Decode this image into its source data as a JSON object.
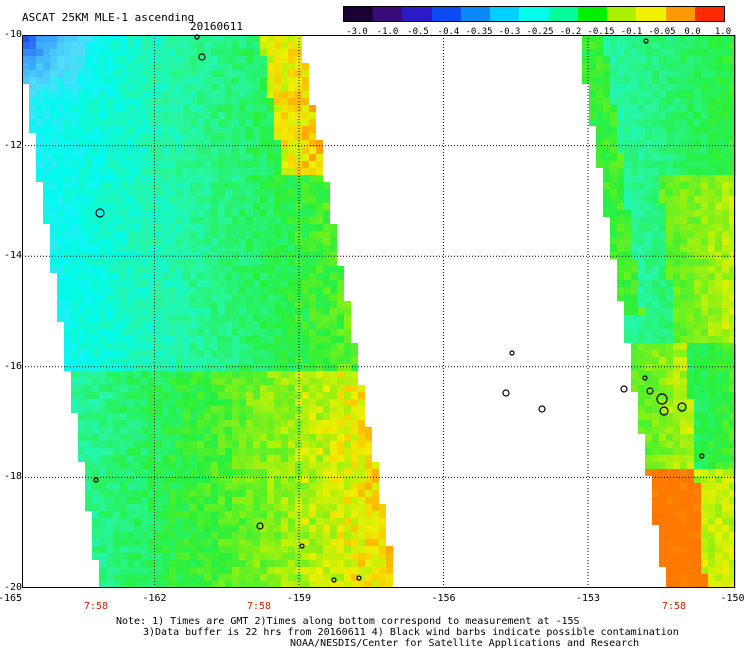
{
  "header": {
    "title": "ASCAT 25KM MLE-1 ascending",
    "date": "20160611"
  },
  "colorbar": {
    "ticks": [
      "-3.0",
      "-1.0",
      "-0.5",
      "-0.4",
      "-0.35",
      "-0.3",
      "-0.25",
      "-0.2",
      "-0.15",
      "-0.1",
      "-0.05",
      "0.0",
      "1.0"
    ],
    "colors": [
      "#1a0033",
      "#3a0a7a",
      "#2a1ac8",
      "#0a4af0",
      "#0a8af8",
      "#00d0ff",
      "#00ffe8",
      "#00ff9a",
      "#00f000",
      "#a8f000",
      "#f0f000",
      "#ff9a00",
      "#ff2a00"
    ]
  },
  "axes": {
    "y_labels": [
      "-10",
      "-12",
      "-14",
      "-16",
      "-18",
      "-20"
    ],
    "x_labels": [
      "-165",
      "-162",
      "-159",
      "-156",
      "-153",
      "-150"
    ],
    "time_labels": [
      "7:58",
      "7:58",
      "7:58"
    ]
  },
  "notes": {
    "line1": "Note: 1) Times are GMT 2)Times along bottom correspond to measurement at -15S",
    "line2": "3)Data buffer is 22 hrs from 20160611 4) Black wind barbs indicate possible contamination",
    "line3": "NOAA/NESDIS/Center for Satellite Applications and Research"
  }
}
